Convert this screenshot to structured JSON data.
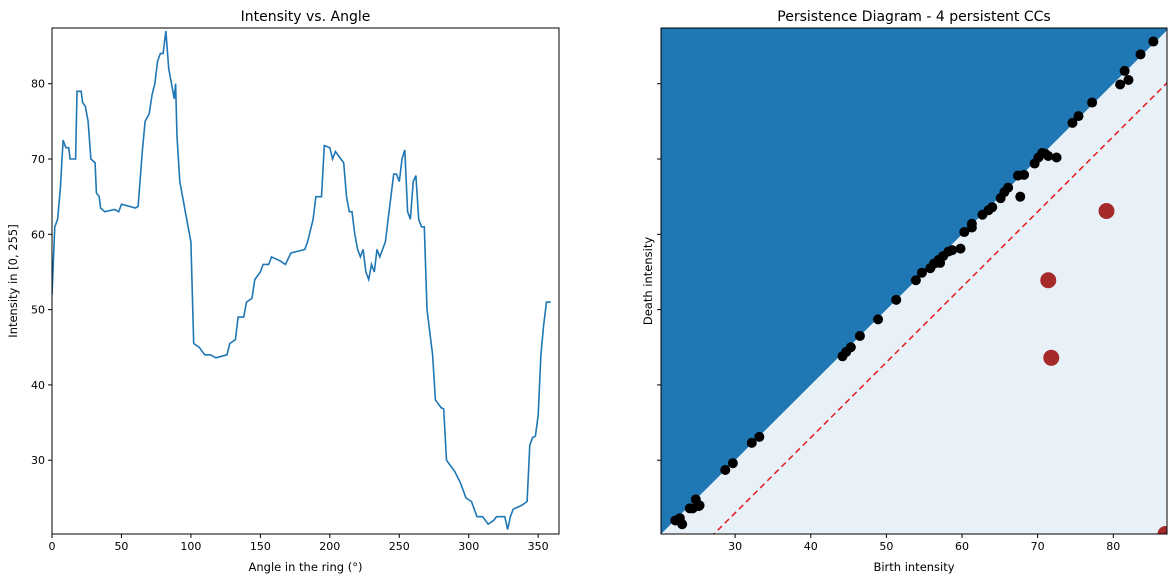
{
  "chart_data": [
    {
      "type": "line",
      "title": "Intensity vs. Angle",
      "xlabel": "Angle in the ring (°)",
      "ylabel": "Intensity in [0, 255]",
      "xlim": [
        0,
        365
      ],
      "ylim": [
        20.2,
        87.4
      ],
      "xticks": [
        0,
        50,
        100,
        150,
        200,
        250,
        300,
        350
      ],
      "yticks": [
        30,
        40,
        50,
        60,
        70,
        80
      ],
      "series": [
        {
          "color": "#1f77b4",
          "x": [
            0,
            2,
            4,
            6,
            8,
            10,
            12,
            13,
            17,
            18,
            21,
            22,
            24,
            26,
            28,
            31,
            32,
            34,
            35,
            38,
            45,
            48,
            50,
            54,
            60,
            62,
            65,
            67,
            70,
            72,
            74,
            76,
            78,
            80,
            82,
            84,
            86,
            88,
            89,
            90,
            92,
            94,
            96,
            98,
            100,
            102,
            106,
            110,
            114,
            118,
            122,
            126,
            128,
            132,
            134,
            138,
            140,
            144,
            146,
            150,
            152,
            156,
            158,
            164,
            168,
            172,
            178,
            182,
            184,
            188,
            190,
            194,
            196,
            200,
            202,
            204,
            208,
            210,
            212,
            214,
            216,
            218,
            220,
            222,
            224,
            226,
            228,
            230,
            232,
            234,
            236,
            240,
            242,
            246,
            248,
            250,
            252,
            254,
            256,
            258,
            260,
            262,
            264,
            266,
            268,
            270,
            272,
            274,
            276,
            278,
            280,
            282,
            284,
            286,
            290,
            294,
            296,
            298,
            302,
            306,
            310,
            314,
            318,
            320,
            326,
            328,
            330,
            332,
            338,
            342,
            344,
            346,
            348,
            350,
            352,
            354,
            356,
            359
          ],
          "values": [
            52,
            61,
            62,
            66,
            72.5,
            71.5,
            71.5,
            70,
            70,
            79,
            79,
            77.5,
            77,
            75,
            70,
            69.5,
            65.5,
            65,
            63.5,
            63,
            63.3,
            63,
            64,
            63.8,
            63.5,
            63.7,
            71,
            75,
            76,
            78.5,
            80,
            83,
            84,
            84,
            87,
            82,
            80,
            78,
            80,
            73,
            67,
            65,
            63,
            61,
            59,
            45.5,
            45,
            44,
            44,
            43.6,
            43.8,
            44,
            45.5,
            46,
            49,
            49,
            51,
            51.5,
            54,
            55,
            56,
            56,
            57,
            56.5,
            56,
            57.5,
            57.8,
            58,
            59,
            62,
            65,
            65,
            71.8,
            71.5,
            70,
            71,
            70,
            69.5,
            65,
            63,
            63,
            60,
            58,
            57,
            58,
            55,
            54,
            56,
            55,
            58,
            57,
            59,
            62,
            68,
            68,
            67,
            70,
            71.2,
            63,
            62,
            67,
            67.8,
            62,
            61,
            61,
            50,
            47,
            44,
            38,
            37.5,
            37,
            36.8,
            30,
            29.5,
            28.5,
            27,
            26,
            25,
            24.5,
            22.5,
            22.5,
            21.5,
            22,
            22.5,
            22.5,
            20.8,
            22.5,
            23.5,
            24,
            24.5,
            32,
            33,
            33.2,
            36,
            44,
            48,
            51,
            51
          ]
        }
      ]
    },
    {
      "type": "scatter",
      "title": "Persistence Diagram - 4 persistent CCs",
      "xlabel": "Birth intensity",
      "ylabel": "Death intensity",
      "xlim": [
        20.2,
        87.1
      ],
      "ylim": [
        20.2,
        87.4
      ],
      "xticks": [
        30,
        40,
        50,
        60,
        70,
        80
      ],
      "yticks": [
        30,
        40,
        50,
        60,
        70,
        80
      ],
      "ytick_labels": false,
      "region_colors": {
        "above": "#1f77b4",
        "below": "#e8f0f8"
      },
      "dashed_line": {
        "intercept": -7,
        "color": "#e41a1c"
      },
      "series": [
        {
          "color": "#000000",
          "size": 5,
          "x": [
            22.1,
            22.7,
            23.0,
            24.0,
            24.8,
            24.4,
            25.2,
            25.3,
            28.7,
            29.7,
            32.2,
            33.2,
            44.2,
            44.7,
            45.3,
            46.5,
            48.9,
            51.3,
            53.9,
            54.7,
            55.8,
            56.3,
            56.9,
            57.1,
            57.5,
            58.2,
            58.7,
            59.8,
            60.3,
            61.3,
            61.3,
            62.7,
            63.5,
            64.0,
            65.1,
            65.6,
            66.1,
            67.4,
            68.2,
            67.7,
            69.6,
            70.1,
            70.6,
            71.0,
            71.4,
            72.5,
            74.6,
            75.4,
            77.2,
            80.9,
            81.5,
            82.0,
            83.6,
            85.3
          ],
          "y": [
            22.0,
            22.3,
            21.5,
            23.6,
            24.8,
            23.6,
            23.9,
            24.0,
            28.7,
            29.6,
            32.3,
            33.1,
            43.8,
            44.4,
            45.0,
            46.5,
            48.7,
            51.3,
            53.9,
            54.9,
            55.5,
            56.1,
            56.6,
            56.2,
            57.1,
            57.7,
            57.9,
            58.1,
            60.3,
            60.9,
            61.4,
            62.6,
            63.2,
            63.6,
            64.8,
            65.6,
            66.2,
            67.8,
            67.9,
            65.0,
            69.4,
            70.2,
            70.8,
            70.7,
            70.4,
            70.2,
            74.8,
            75.7,
            77.5,
            79.9,
            81.7,
            80.5,
            83.9,
            85.6
          ]
        },
        {
          "color": "#a52a2a",
          "size": 8,
          "x": [
            79.1,
            71.4,
            71.8,
            86.9
          ],
          "y": [
            63.1,
            53.9,
            43.6,
            20.2
          ]
        }
      ]
    }
  ]
}
